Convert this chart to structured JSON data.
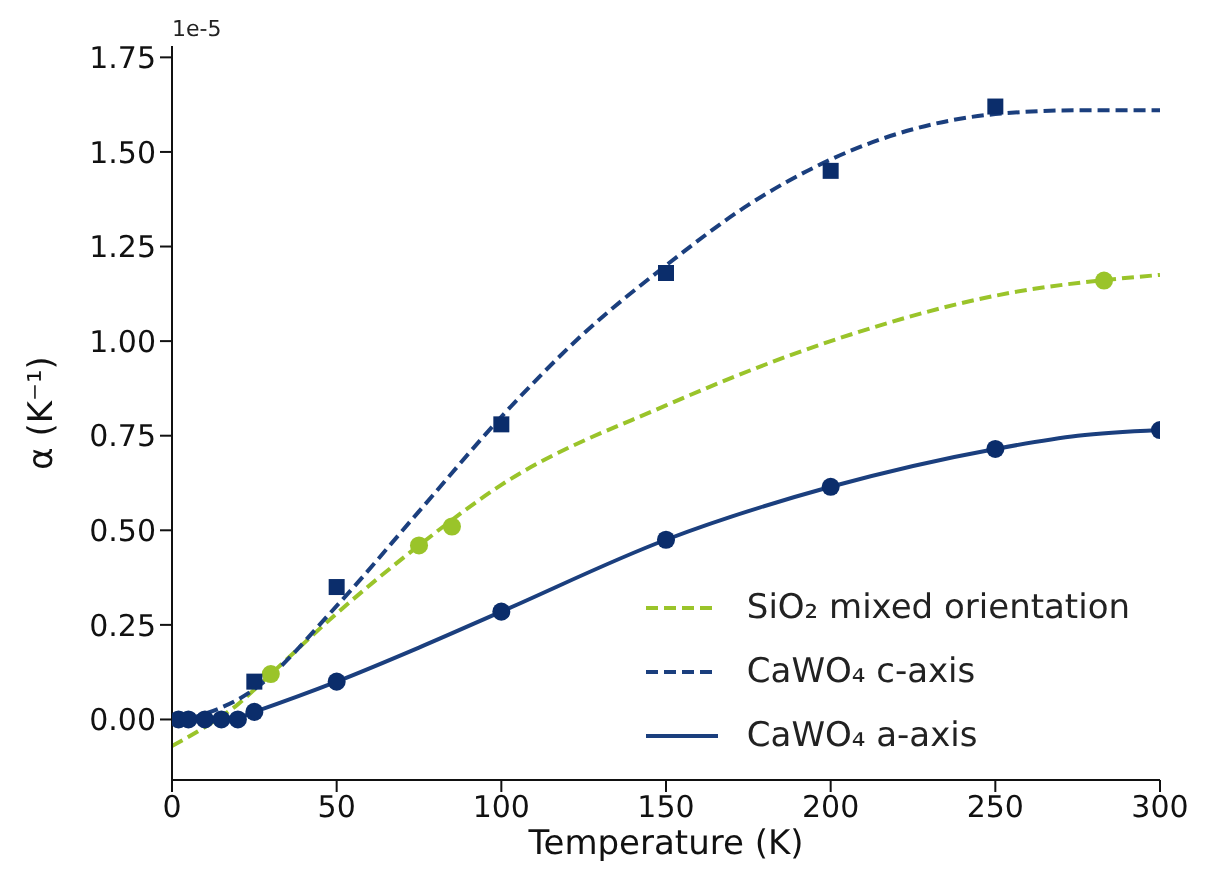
{
  "chart_data": {
    "type": "line",
    "xlabel": "Temperature (K)",
    "ylabel": "α (K⁻¹)",
    "annotations": [
      "1e-5"
    ],
    "xlim": [
      0,
      300
    ],
    "xticks": [
      0,
      50,
      100,
      150,
      200,
      250,
      300
    ],
    "ylim": [
      -0.16,
      1.78
    ],
    "yticks": [
      {
        "value": 0,
        "label": "0.00"
      },
      0.25,
      {
        "value": 0.5,
        "label": "0.50"
      },
      0.75,
      {
        "value": 1,
        "label": "1.00"
      },
      1.25,
      {
        "value": 1.5,
        "label": "1.50"
      },
      1.75
    ],
    "grid": false,
    "legend": "bottom right",
    "series": [
      {
        "name": "SiO₂ mixed orientation",
        "color": "#9ac42a",
        "line_style": "dashed",
        "marker": "none",
        "x": [
          0,
          10,
          20,
          30,
          50,
          75,
          100,
          150,
          200,
          250,
          300
        ],
        "values": [
          -0.07,
          -0.02,
          0.04,
          0.12,
          0.28,
          0.46,
          0.62,
          0.83,
          1.0,
          1.12,
          1.175
        ]
      },
      {
        "name": "CaWO₄ c-axis",
        "color": "#1b3f7e",
        "line_style": "dashed",
        "marker": "none",
        "x": [
          0,
          25,
          50,
          75,
          100,
          125,
          150,
          175,
          200,
          225,
          250,
          275,
          300
        ],
        "values": [
          -0.01,
          0.08,
          0.3,
          0.55,
          0.8,
          1.02,
          1.2,
          1.36,
          1.48,
          1.56,
          1.6,
          1.61,
          1.61
        ]
      },
      {
        "name": "CaWO₄ a-axis",
        "color": "#1b3f7e",
        "line_style": "solid",
        "marker": "none",
        "x": [
          0,
          10,
          20,
          25,
          50,
          75,
          100,
          150,
          200,
          250,
          275,
          300
        ],
        "values": [
          0,
          0,
          0.005,
          0.02,
          0.1,
          0.19,
          0.285,
          0.475,
          0.615,
          0.715,
          0.75,
          0.765
        ]
      },
      {
        "type": "scatter",
        "color": "#9ac42a",
        "marker": "circle",
        "x": [
          30,
          75,
          85,
          283
        ],
        "values": [
          0.12,
          0.46,
          0.51,
          1.16
        ]
      },
      {
        "type": "scatter",
        "color": "#0b2d6b",
        "marker": "square",
        "x": [
          25,
          50,
          100,
          150,
          200,
          250
        ],
        "values": [
          0.1,
          0.35,
          0.78,
          1.18,
          1.45,
          1.62
        ]
      },
      {
        "type": "scatter",
        "color": "#0b2d6b",
        "marker": "circle",
        "x": [
          2,
          5,
          10,
          15,
          20,
          25,
          50,
          100,
          150,
          200,
          250,
          300
        ],
        "values": [
          0,
          0,
          0,
          0,
          0,
          0.02,
          0.1,
          0.285,
          0.475,
          0.615,
          0.715,
          0.765
        ]
      }
    ]
  }
}
